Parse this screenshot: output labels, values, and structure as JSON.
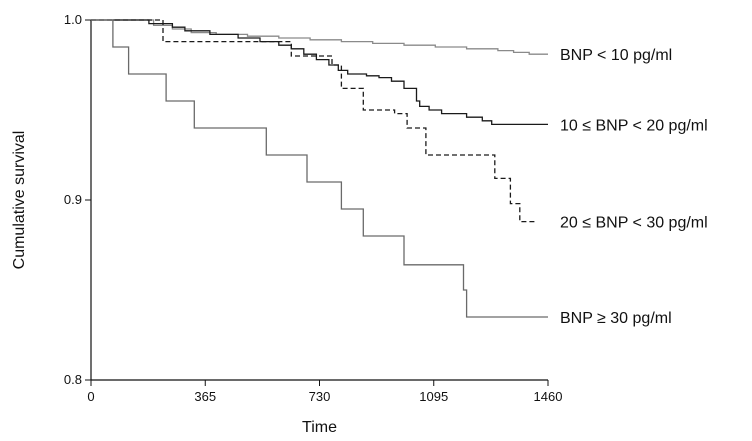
{
  "chart_data": {
    "type": "line",
    "title": "",
    "xlabel": "Time",
    "ylabel": "Cumulative survival",
    "xlim": [
      0,
      1460
    ],
    "ylim": [
      0.8,
      1.0
    ],
    "x_ticks": [
      0,
      365,
      730,
      1095,
      1460
    ],
    "x_tick_labels": [
      "0",
      "365",
      "730",
      "1095",
      "1460"
    ],
    "y_ticks": [
      0.8,
      0.9,
      1.0
    ],
    "y_tick_labels": [
      "0.8",
      "0.9",
      "1.0"
    ],
    "grid": false,
    "series": [
      {
        "name": "BNP < 10 pg/ml",
        "color": "#8a8a8a",
        "dash": "solid",
        "step": true,
        "points": [
          [
            0,
            1.0
          ],
          [
            80,
            1.0
          ],
          [
            200,
            0.997
          ],
          [
            260,
            0.995
          ],
          [
            320,
            0.993
          ],
          [
            400,
            0.992
          ],
          [
            500,
            0.991
          ],
          [
            600,
            0.99
          ],
          [
            700,
            0.989
          ],
          [
            800,
            0.988
          ],
          [
            900,
            0.987
          ],
          [
            1000,
            0.986
          ],
          [
            1100,
            0.985
          ],
          [
            1200,
            0.984
          ],
          [
            1300,
            0.983
          ],
          [
            1350,
            0.982
          ],
          [
            1400,
            0.981
          ],
          [
            1460,
            0.981
          ]
        ]
      },
      {
        "name": "10 ≤ BNP < 20 pg/ml",
        "color": "#1a1a1a",
        "dash": "solid",
        "step": true,
        "points": [
          [
            0,
            1.0
          ],
          [
            180,
            1.0
          ],
          [
            185,
            0.998
          ],
          [
            260,
            0.996
          ],
          [
            300,
            0.994
          ],
          [
            380,
            0.992
          ],
          [
            470,
            0.99
          ],
          [
            540,
            0.988
          ],
          [
            600,
            0.986
          ],
          [
            640,
            0.984
          ],
          [
            680,
            0.981
          ],
          [
            720,
            0.978
          ],
          [
            760,
            0.975
          ],
          [
            790,
            0.972
          ],
          [
            820,
            0.97
          ],
          [
            880,
            0.969
          ],
          [
            920,
            0.968
          ],
          [
            960,
            0.966
          ],
          [
            1000,
            0.962
          ],
          [
            1040,
            0.955
          ],
          [
            1050,
            0.952
          ],
          [
            1080,
            0.95
          ],
          [
            1120,
            0.948
          ],
          [
            1200,
            0.946
          ],
          [
            1250,
            0.944
          ],
          [
            1280,
            0.942
          ],
          [
            1460,
            0.942
          ]
        ]
      },
      {
        "name": "20 ≤ BNP < 30 pg/ml",
        "color": "#1a1a1a",
        "dash": "dashed",
        "step": true,
        "points": [
          [
            0,
            1.0
          ],
          [
            230,
            1.0
          ],
          [
            230,
            0.988
          ],
          [
            640,
            0.988
          ],
          [
            640,
            0.98
          ],
          [
            770,
            0.98
          ],
          [
            770,
            0.975
          ],
          [
            800,
            0.975
          ],
          [
            800,
            0.962
          ],
          [
            870,
            0.962
          ],
          [
            870,
            0.95
          ],
          [
            970,
            0.95
          ],
          [
            970,
            0.948
          ],
          [
            1010,
            0.948
          ],
          [
            1010,
            0.94
          ],
          [
            1070,
            0.94
          ],
          [
            1070,
            0.925
          ],
          [
            1200,
            0.925
          ],
          [
            1200,
            0.925
          ],
          [
            1290,
            0.925
          ],
          [
            1290,
            0.912
          ],
          [
            1340,
            0.912
          ],
          [
            1340,
            0.898
          ],
          [
            1370,
            0.898
          ],
          [
            1370,
            0.888
          ],
          [
            1420,
            0.888
          ]
        ]
      },
      {
        "name": "BNP ≥ 30 pg/ml",
        "color": "#6a6a6a",
        "dash": "solid",
        "step": true,
        "points": [
          [
            0,
            1.0
          ],
          [
            70,
            1.0
          ],
          [
            70,
            0.985
          ],
          [
            120,
            0.985
          ],
          [
            120,
            0.97
          ],
          [
            240,
            0.97
          ],
          [
            240,
            0.955
          ],
          [
            330,
            0.955
          ],
          [
            330,
            0.94
          ],
          [
            560,
            0.94
          ],
          [
            560,
            0.925
          ],
          [
            690,
            0.925
          ],
          [
            690,
            0.91
          ],
          [
            800,
            0.91
          ],
          [
            800,
            0.895
          ],
          [
            870,
            0.895
          ],
          [
            870,
            0.88
          ],
          [
            1000,
            0.88
          ],
          [
            1000,
            0.864
          ],
          [
            1190,
            0.864
          ],
          [
            1190,
            0.85
          ],
          [
            1200,
            0.85
          ],
          [
            1200,
            0.835
          ],
          [
            1460,
            0.835
          ]
        ]
      }
    ]
  }
}
